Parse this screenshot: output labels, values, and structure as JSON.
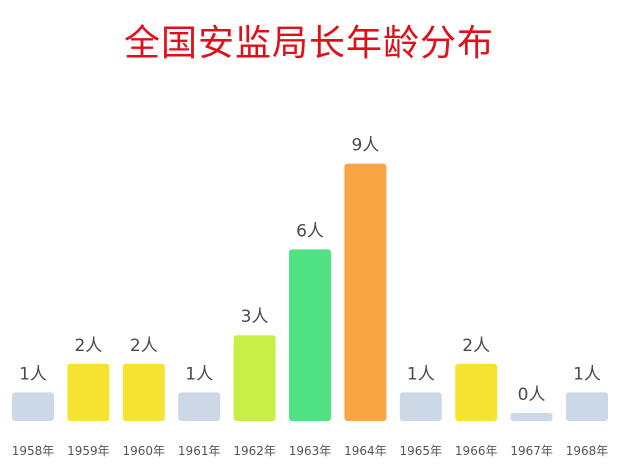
{
  "chart_data": {
    "type": "bar",
    "title": "全国安监局长年龄分布",
    "categories": [
      "1958年",
      "1959年",
      "1960年",
      "1961年",
      "1962年",
      "1963年",
      "1964年",
      "1965年",
      "1966年",
      "1967年",
      "1968年"
    ],
    "values": [
      1,
      2,
      2,
      1,
      3,
      6,
      9,
      1,
      2,
      0,
      1
    ],
    "value_labels": [
      "1人",
      "2人",
      "2人",
      "1人",
      "3人",
      "6人",
      "9人",
      "1人",
      "2人",
      "0人",
      "1人"
    ],
    "colors": [
      "#cdd8e6",
      "#f5e231",
      "#f5e231",
      "#cdd8e6",
      "#c8ef46",
      "#50e283",
      "#f7a542",
      "#cdd8e6",
      "#f5e231",
      "#cdd8e6",
      "#cdd8e6"
    ],
    "ylim": [
      0,
      9
    ],
    "grid": false,
    "legend": "none"
  }
}
